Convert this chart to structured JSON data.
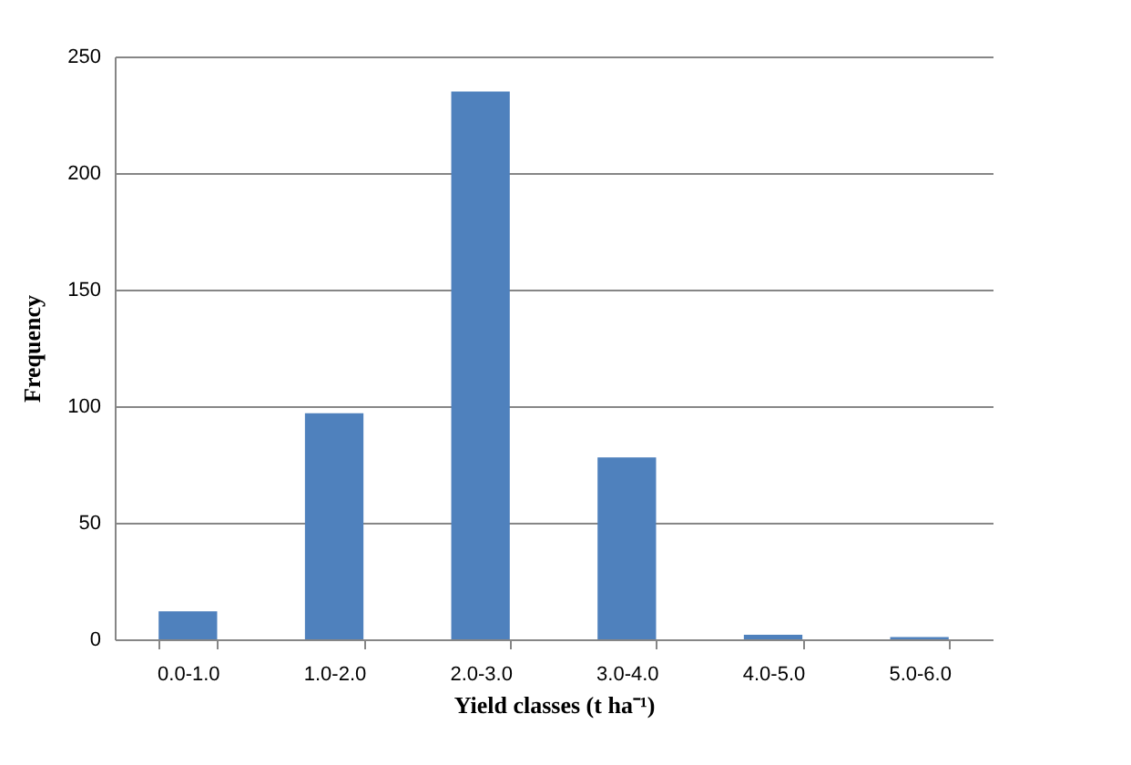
{
  "chart_data": {
    "type": "bar",
    "xlabel": "Yield classes (t ha⁻¹)",
    "ylabel": "Frequency",
    "categories": [
      "0.0-1.0",
      "1.0-2.0",
      "2.0-3.0",
      "3.0-4.0",
      "4.0-5.0",
      "5.0-6.0"
    ],
    "values": [
      12,
      97,
      235,
      78,
      2,
      1
    ],
    "color": "#4f81bd",
    "ylim": [
      0,
      250
    ],
    "yticks": [
      0,
      50,
      100,
      150,
      200,
      250
    ],
    "grid": "y"
  }
}
